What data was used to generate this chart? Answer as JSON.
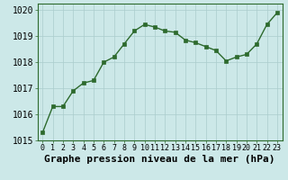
{
  "x": [
    0,
    1,
    2,
    3,
    4,
    5,
    6,
    7,
    8,
    9,
    10,
    11,
    12,
    13,
    14,
    15,
    16,
    17,
    18,
    19,
    20,
    21,
    22,
    23
  ],
  "y": [
    1015.3,
    1016.3,
    1016.3,
    1016.9,
    1017.2,
    1017.3,
    1018.0,
    1018.2,
    1018.7,
    1019.2,
    1019.45,
    1019.35,
    1019.2,
    1019.15,
    1018.85,
    1018.75,
    1018.6,
    1018.45,
    1018.05,
    1018.2,
    1018.3,
    1018.7,
    1019.45,
    1019.9
  ],
  "line_color": "#2d6a2d",
  "marker_color": "#2d6a2d",
  "bg_color": "#cce8e8",
  "grid_color": "#aacccc",
  "xlabel": "Graphe pression niveau de la mer (hPa)",
  "ylim": [
    1015.0,
    1020.25
  ],
  "yticks": [
    1015,
    1016,
    1017,
    1018,
    1019,
    1020
  ],
  "xticks": [
    0,
    1,
    2,
    3,
    4,
    5,
    6,
    7,
    8,
    9,
    10,
    11,
    12,
    13,
    14,
    15,
    16,
    17,
    18,
    19,
    20,
    21,
    22,
    23
  ],
  "xlabel_fontsize": 8,
  "tick_fontsize": 7,
  "linewidth": 1.0,
  "markersize": 2.8
}
